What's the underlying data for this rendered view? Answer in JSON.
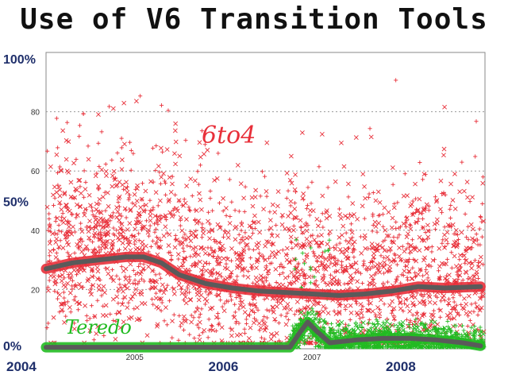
{
  "chart_data": {
    "type": "scatter",
    "title": "Use of V6 Transition Tools",
    "x_range": [
      2004.0,
      2008.95
    ],
    "ylim": [
      0,
      100
    ],
    "grid": "horizontal dotted",
    "tick_labels_y_small": [
      "80",
      "60",
      "40",
      "20"
    ],
    "tick_values_y_small": [
      80,
      60,
      40,
      20
    ],
    "tick_labels_y_big": [
      "100%",
      "50%",
      "0%"
    ],
    "tick_values_y_big": [
      100,
      50,
      0
    ],
    "tick_labels_x_small": [
      "2005",
      "2007"
    ],
    "tick_values_x_small": [
      2005.0,
      2007.0
    ],
    "tick_labels_x_big": [
      "2004",
      "2006",
      "2008"
    ],
    "tick_values_x_big": [
      2004.0,
      2006.0,
      2008.0
    ],
    "series": [
      {
        "name": "6to4",
        "color": "#e8303a",
        "trend": {
          "x": [
            2004.0,
            2004.3,
            2004.6,
            2004.9,
            2005.1,
            2005.3,
            2005.5,
            2005.8,
            2006.1,
            2006.4,
            2006.7,
            2007.0,
            2007.3,
            2007.6,
            2007.9,
            2008.2,
            2008.5,
            2008.9
          ],
          "y": [
            27,
            29,
            30,
            31,
            31,
            29,
            25,
            22,
            20.5,
            19.5,
            19,
            18.5,
            18,
            18.5,
            19.5,
            21,
            20.5,
            21
          ]
        }
      },
      {
        "name": "Teredo",
        "color": "#22bb22",
        "trend": {
          "x": [
            2004.0,
            2006.75,
            2006.85,
            2006.95,
            2007.05,
            2007.2,
            2007.5,
            2007.8,
            2008.1,
            2008.4,
            2008.7,
            2008.9
          ],
          "y": [
            0.5,
            0.5,
            5,
            9,
            6,
            2,
            3,
            3.5,
            3.5,
            3,
            2,
            1
          ]
        }
      }
    ]
  }
}
